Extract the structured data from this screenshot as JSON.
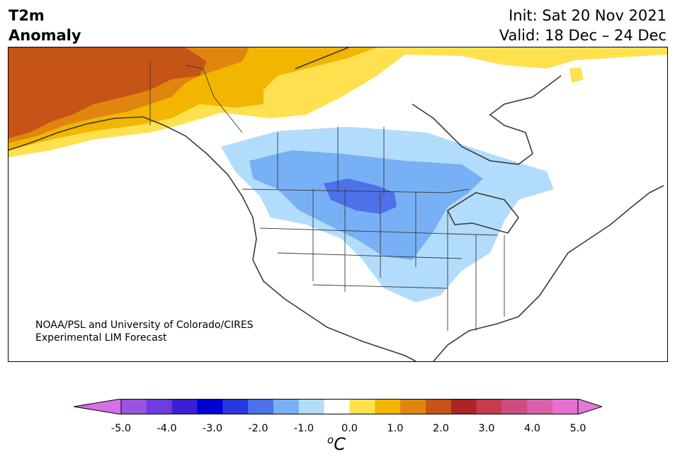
{
  "header": {
    "title_line1": "T2m",
    "title_line2": "Anomaly",
    "init": "Init: Sat 20 Nov 2021",
    "valid": "Valid: 18 Dec – 24 Dec"
  },
  "credit": {
    "line1": "NOAA/PSL and University of Colorado/CIRES",
    "line2": "Experimental LIM Forecast"
  },
  "colorbar": {
    "colors": [
      "#d670e6",
      "#9a55e0",
      "#6e3de0",
      "#3b1fd6",
      "#0000d0",
      "#2838de",
      "#4d71e8",
      "#78b0f5",
      "#b2dcfb",
      "#ffffff",
      "#ffe150",
      "#f2b600",
      "#e0860e",
      "#c65417",
      "#ae2424",
      "#c63b4e",
      "#cc4e80",
      "#d961ab",
      "#e670d0",
      "#e07ad8"
    ],
    "ticks": [
      "-5.0",
      "-4.0",
      "-3.0",
      "-2.0",
      "-1.0",
      "0.0",
      "1.0",
      "2.0",
      "3.0",
      "4.0",
      "5.0"
    ],
    "unit": "C",
    "unit_prefix": "o"
  },
  "map": {
    "region": "North America",
    "anomaly_colors": {
      "warm_strong": "#c65417",
      "warm_mid": "#e0860e",
      "warm_light": "#f2b600",
      "warm_faint": "#ffe150",
      "cool_faint": "#b2dcfb",
      "cool_light": "#78b0f5",
      "cool_mid": "#4d71e8"
    }
  }
}
